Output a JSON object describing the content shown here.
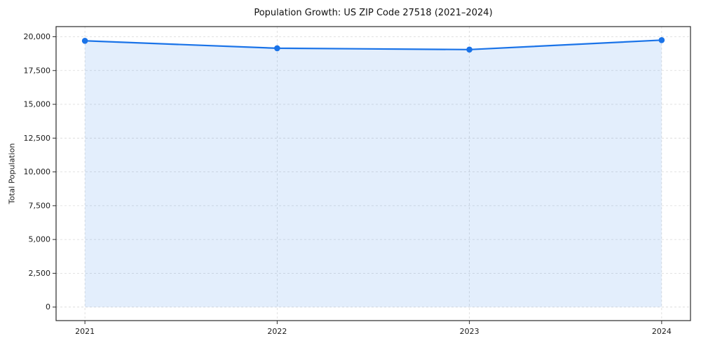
{
  "chart_data": {
    "type": "area",
    "title": "Population Growth: US ZIP Code 27518 (2021–2024)",
    "xlabel": "",
    "ylabel": "Total Population",
    "categories": [
      "2021",
      "2022",
      "2023",
      "2024"
    ],
    "x": [
      2021,
      2022,
      2023,
      2024
    ],
    "series": [
      {
        "name": "Total Population",
        "values": [
          19700,
          19150,
          19050,
          19750
        ]
      }
    ],
    "yticks": [
      0,
      2500,
      5000,
      7500,
      10000,
      12500,
      15000,
      17500,
      20000
    ],
    "ytick_labels": [
      "0",
      "2,500",
      "5,000",
      "7,500",
      "10,000",
      "12,500",
      "15,000",
      "17,500",
      "20,000"
    ],
    "xlim": [
      2020.85,
      2024.15
    ],
    "ylim": [
      -1000,
      20750
    ],
    "grid": true,
    "grid_style": "dashed",
    "legend": "none",
    "colors": {
      "line": "#1a73e8",
      "fill": "#1a73e8",
      "fill_opacity": 0.12,
      "grid": "#d9d9d9",
      "axis": "#2b2b2b",
      "text": "#1a1a1a",
      "background": "#ffffff"
    }
  }
}
